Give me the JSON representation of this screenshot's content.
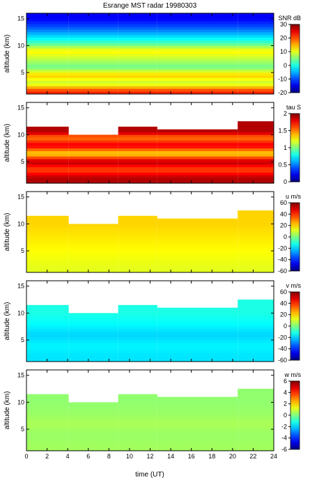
{
  "chart_data": {
    "type": "heatmap",
    "title": "Esrange MST radar 19980303",
    "xlabel": "time (UT)",
    "xlim": [
      0,
      24
    ],
    "xticks": [
      "0",
      "2",
      "4",
      "6",
      "8",
      "10",
      "12",
      "14",
      "16",
      "18",
      "20",
      "22",
      "24"
    ],
    "panels": [
      {
        "ylabel": "altitude (km)",
        "ylim": [
          1,
          16
        ],
        "yticks": [
          "5",
          "10",
          "15"
        ],
        "colorbar_label": "SNR dB",
        "clim": [
          -20,
          30
        ],
        "colorbar_ticks": [
          "30",
          "20",
          "10",
          "0",
          "-10",
          "-20"
        ],
        "profile": [
          {
            "alt": 1.5,
            "value": 22
          },
          {
            "alt": 3,
            "value": 8
          },
          {
            "alt": 4.5,
            "value": 14
          },
          {
            "alt": 6,
            "value": 4
          },
          {
            "alt": 7.5,
            "value": 8
          },
          {
            "alt": 9,
            "value": 12
          },
          {
            "alt": 10.5,
            "value": 2
          },
          {
            "alt": 12,
            "value": -4
          },
          {
            "alt": 13.5,
            "value": -10
          },
          {
            "alt": 15,
            "value": -14
          }
        ],
        "segments": [
          {
            "start": 0,
            "end": 4.1,
            "top": 16
          },
          {
            "start": 4.1,
            "end": 8.9,
            "top": 16
          },
          {
            "start": 8.9,
            "end": 12.7,
            "top": 16
          },
          {
            "start": 12.7,
            "end": 20.5,
            "top": 16
          },
          {
            "start": 20.5,
            "end": 24,
            "top": 16
          }
        ]
      },
      {
        "ylabel": "altitude (km)",
        "ylim": [
          1,
          16
        ],
        "yticks": [
          "5",
          "10",
          "15"
        ],
        "colorbar_label": "tau S",
        "clim": [
          0,
          2
        ],
        "colorbar_ticks": [
          "2",
          "1.5",
          "1",
          "0.5",
          "0"
        ],
        "profile": [
          {
            "alt": 2,
            "value": 1.9
          },
          {
            "alt": 3.5,
            "value": 1.6
          },
          {
            "alt": 5,
            "value": 1.9
          },
          {
            "alt": 6.5,
            "value": 1.3
          },
          {
            "alt": 8,
            "value": 1.8
          },
          {
            "alt": 9.5,
            "value": 1.5
          },
          {
            "alt": 10.5,
            "value": 1.9
          }
        ],
        "segments": [
          {
            "start": 0,
            "end": 4.1,
            "top": 11.2
          },
          {
            "start": 4.1,
            "end": 8.9,
            "top": 9.8
          },
          {
            "start": 8.9,
            "end": 12.7,
            "top": 11.2
          },
          {
            "start": 12.7,
            "end": 20.5,
            "top": 10.8
          },
          {
            "start": 20.5,
            "end": 24,
            "top": 12.5
          }
        ]
      },
      {
        "ylabel": "altitude (km)",
        "ylim": [
          1,
          16
        ],
        "yticks": [
          "5",
          "10",
          "15"
        ],
        "colorbar_label": "u m/s",
        "clim": [
          -60,
          60
        ],
        "colorbar_ticks": [
          "60",
          "40",
          "20",
          "0",
          "-20",
          "-40",
          "-60"
        ],
        "profile": [
          {
            "alt": 2,
            "value": 12
          },
          {
            "alt": 4,
            "value": 14
          },
          {
            "alt": 6,
            "value": 16
          },
          {
            "alt": 8,
            "value": 18
          },
          {
            "alt": 10,
            "value": 20
          }
        ],
        "segments": [
          {
            "start": 0,
            "end": 4.1,
            "top": 11.2
          },
          {
            "start": 4.1,
            "end": 8.9,
            "top": 9.8
          },
          {
            "start": 8.9,
            "end": 12.7,
            "top": 11.2
          },
          {
            "start": 12.7,
            "end": 20.5,
            "top": 10.8
          },
          {
            "start": 20.5,
            "end": 24,
            "top": 12.5
          }
        ]
      },
      {
        "ylabel": "altitude (km)",
        "ylim": [
          1,
          16
        ],
        "yticks": [
          "5",
          "10",
          "15"
        ],
        "colorbar_label": "v m/s",
        "clim": [
          -60,
          60
        ],
        "colorbar_ticks": [
          "60",
          "40",
          "20",
          "0",
          "-20",
          "-40",
          "-60"
        ],
        "profile": [
          {
            "alt": 2,
            "value": -18
          },
          {
            "alt": 4,
            "value": -16
          },
          {
            "alt": 6,
            "value": -20
          },
          {
            "alt": 8,
            "value": -15
          },
          {
            "alt": 10,
            "value": -12
          }
        ],
        "segments": [
          {
            "start": 0,
            "end": 4.1,
            "top": 11.2
          },
          {
            "start": 4.1,
            "end": 8.9,
            "top": 9.8
          },
          {
            "start": 8.9,
            "end": 12.7,
            "top": 11.2
          },
          {
            "start": 12.7,
            "end": 20.5,
            "top": 10.8
          },
          {
            "start": 20.5,
            "end": 24,
            "top": 12.5
          }
        ]
      },
      {
        "ylabel": "altitude (km)",
        "ylim": [
          1,
          16
        ],
        "yticks": [
          "5",
          "10",
          "15"
        ],
        "colorbar_label": "w m/s",
        "clim": [
          -6,
          6
        ],
        "colorbar_ticks": [
          "6",
          "4",
          "2",
          "0",
          "-2",
          "-4",
          "-6"
        ],
        "profile": [
          {
            "alt": 2,
            "value": 0.4
          },
          {
            "alt": 4,
            "value": 0.3
          },
          {
            "alt": 6,
            "value": 0.5
          },
          {
            "alt": 8,
            "value": 0.3
          },
          {
            "alt": 10,
            "value": 0.2
          }
        ],
        "segments": [
          {
            "start": 0,
            "end": 4.1,
            "top": 11.2
          },
          {
            "start": 4.1,
            "end": 8.9,
            "top": 9.8
          },
          {
            "start": 8.9,
            "end": 12.7,
            "top": 11.2
          },
          {
            "start": 12.7,
            "end": 20.5,
            "top": 10.8
          },
          {
            "start": 20.5,
            "end": 24,
            "top": 12.5
          }
        ]
      }
    ]
  }
}
